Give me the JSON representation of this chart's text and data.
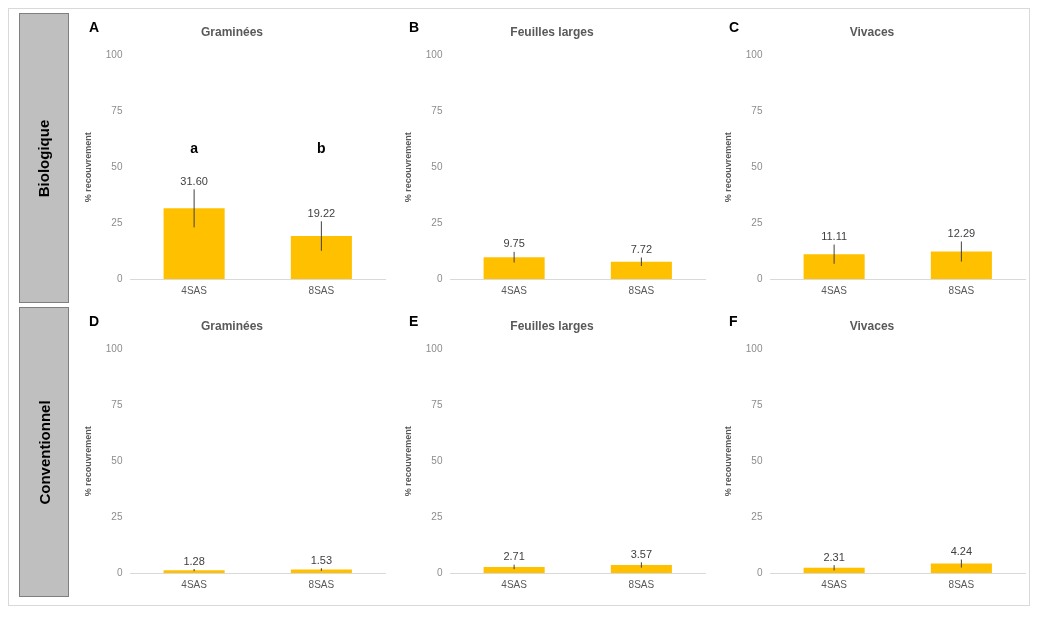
{
  "chart_data": [
    {
      "type": "bar",
      "title": "Graminées",
      "ylabel": "% recouvrement",
      "categories": [
        "4SAS",
        "8SAS"
      ],
      "values": [
        31.6,
        19.22
      ],
      "errors": [
        8.5,
        6.6
      ],
      "color": "#ffc000",
      "value_labels": [
        "31.60",
        "19.22"
      ],
      "ylim": [
        0,
        100
      ],
      "yticks": [
        0,
        25,
        50,
        75,
        100
      ],
      "grid": false,
      "annotations": [
        "A",
        "Biologique",
        "a",
        "b"
      ]
    },
    {
      "type": "bar",
      "title": "Feuilles larges",
      "ylabel": "% recouvrement",
      "categories": [
        "4SAS",
        "8SAS"
      ],
      "values": [
        9.75,
        7.72
      ],
      "errors": [
        2.4,
        1.9
      ],
      "color": "#ffc000",
      "value_labels": [
        "9.75",
        "7.72"
      ],
      "ylim": [
        0,
        100
      ],
      "yticks": [
        0,
        25,
        50,
        75,
        100
      ],
      "grid": false,
      "annotations": [
        "B"
      ]
    },
    {
      "type": "bar",
      "title": "Vivaces",
      "ylabel": "% recouvrement",
      "categories": [
        "4SAS",
        "8SAS"
      ],
      "values": [
        11.11,
        12.29
      ],
      "errors": [
        4.3,
        4.5
      ],
      "color": "#ffc000",
      "value_labels": [
        "11.11",
        "12.29"
      ],
      "ylim": [
        0,
        100
      ],
      "yticks": [
        0,
        25,
        50,
        75,
        100
      ],
      "grid": false,
      "annotations": [
        "C"
      ]
    },
    {
      "type": "bar",
      "title": "Graminées",
      "ylabel": "% recouvrement",
      "categories": [
        "4SAS",
        "8SAS"
      ],
      "values": [
        1.28,
        1.53
      ],
      "errors": [
        0.5,
        0.6
      ],
      "color": "#ffc000",
      "value_labels": [
        "1.28",
        "1.53"
      ],
      "ylim": [
        0,
        100
      ],
      "yticks": [
        0,
        25,
        50,
        75,
        100
      ],
      "grid": false,
      "annotations": [
        "D",
        "Conventionnel"
      ]
    },
    {
      "type": "bar",
      "title": "Feuilles larges",
      "ylabel": "% recouvrement",
      "categories": [
        "4SAS",
        "8SAS"
      ],
      "values": [
        2.71,
        3.57
      ],
      "errors": [
        1.0,
        1.2
      ],
      "color": "#ffc000",
      "value_labels": [
        "2.71",
        "3.57"
      ],
      "ylim": [
        0,
        100
      ],
      "yticks": [
        0,
        25,
        50,
        75,
        100
      ],
      "grid": false,
      "annotations": [
        "E"
      ]
    },
    {
      "type": "bar",
      "title": "Vivaces",
      "ylabel": "% recouvrement",
      "categories": [
        "4SAS",
        "8SAS"
      ],
      "values": [
        2.31,
        4.24
      ],
      "errors": [
        1.2,
        1.8
      ],
      "color": "#ffc000",
      "value_labels": [
        "2.31",
        "4.24"
      ],
      "ylim": [
        0,
        100
      ],
      "yticks": [
        0,
        25,
        50,
        75,
        100
      ],
      "grid": false,
      "annotations": [
        "F"
      ]
    }
  ]
}
